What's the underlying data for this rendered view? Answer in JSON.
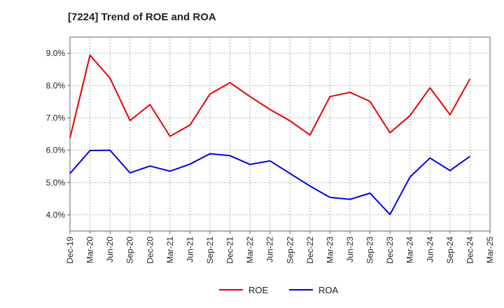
{
  "chart_data": {
    "type": "line",
    "title": "[7224]  Trend of ROE and ROA",
    "xlabel": "",
    "ylabel": "",
    "categories": [
      "Dec-19",
      "Mar-20",
      "Jun-20",
      "Sep-20",
      "Dec-20",
      "Mar-21",
      "Jun-21",
      "Sep-21",
      "Dec-21",
      "Mar-22",
      "Jun-22",
      "Sep-22",
      "Dec-22",
      "Mar-23",
      "Jun-23",
      "Sep-23",
      "Dec-23",
      "Mar-24",
      "Jun-24",
      "Sep-24",
      "Dec-24",
      "Mar-25"
    ],
    "yticks": [
      4.0,
      5.0,
      6.0,
      7.0,
      8.0,
      9.0
    ],
    "ytick_labels": [
      "4.0%",
      "5.0%",
      "6.0%",
      "7.0%",
      "8.0%",
      "9.0%"
    ],
    "ylim": [
      3.5,
      9.5
    ],
    "grid": true,
    "legend_position": "bottom",
    "series": [
      {
        "name": "ROE",
        "color": "#e60000",
        "values": [
          6.38,
          8.94,
          8.23,
          6.92,
          7.41,
          6.43,
          6.78,
          7.74,
          8.09,
          7.66,
          7.26,
          6.91,
          6.47,
          7.66,
          7.79,
          7.51,
          6.54,
          7.07,
          7.93,
          7.1,
          8.21,
          null
        ]
      },
      {
        "name": "ROA",
        "color": "#0000e6",
        "values": [
          5.28,
          5.99,
          6.0,
          5.3,
          5.51,
          5.35,
          5.57,
          5.89,
          5.83,
          5.56,
          5.67,
          5.28,
          4.89,
          4.54,
          4.48,
          4.67,
          4.01,
          5.17,
          5.76,
          5.37,
          5.81,
          null
        ]
      }
    ]
  }
}
